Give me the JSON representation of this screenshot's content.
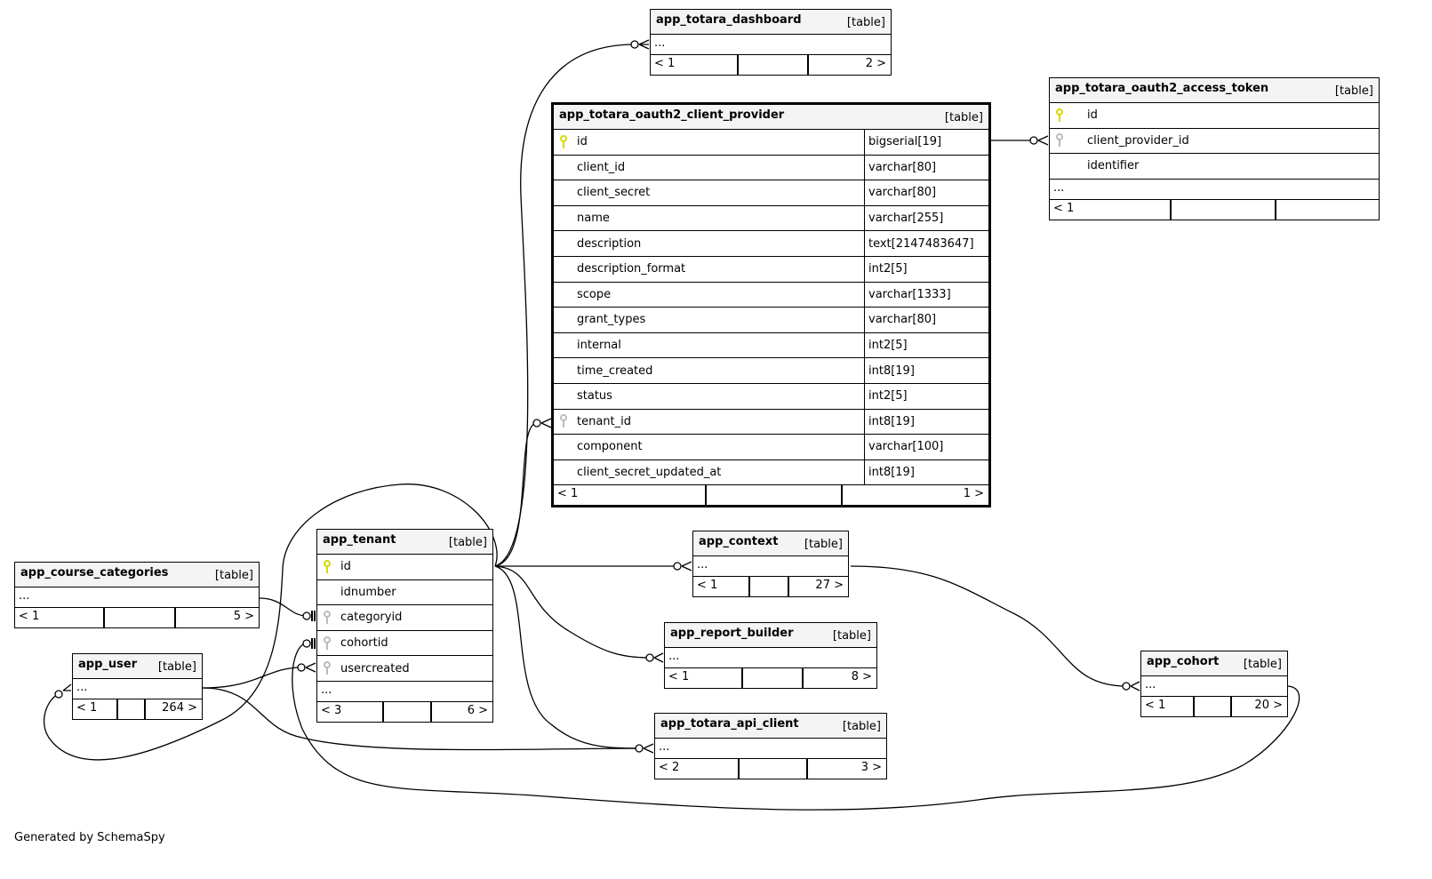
{
  "tables": [
    {
      "name": "app_totara_dashboard",
      "kind": "[table]",
      "ellipsis": "...",
      "columns": [],
      "footer": [
        "< 1",
        "",
        "2 >"
      ]
    },
    {
      "name": "app_totara_oauth2_client_provider",
      "kind": "[table]",
      "focus": true,
      "ellipsis": "",
      "columns": [
        {
          "name": "id",
          "type": "bigserial[19]",
          "key": "primary"
        },
        {
          "name": "client_id",
          "type": "varchar[80]",
          "key": ""
        },
        {
          "name": "client_secret",
          "type": "varchar[80]",
          "key": ""
        },
        {
          "name": "name",
          "type": "varchar[255]",
          "key": ""
        },
        {
          "name": "description",
          "type": "text[2147483647]",
          "key": ""
        },
        {
          "name": "description_format",
          "type": "int2[5]",
          "key": ""
        },
        {
          "name": "scope",
          "type": "varchar[1333]",
          "key": ""
        },
        {
          "name": "grant_types",
          "type": "varchar[80]",
          "key": ""
        },
        {
          "name": "internal",
          "type": "int2[5]",
          "key": ""
        },
        {
          "name": "time_created",
          "type": "int8[19]",
          "key": ""
        },
        {
          "name": "status",
          "type": "int2[5]",
          "key": ""
        },
        {
          "name": "tenant_id",
          "type": "int8[19]",
          "key": "foreign"
        },
        {
          "name": "component",
          "type": "varchar[100]",
          "key": ""
        },
        {
          "name": "client_secret_updated_at",
          "type": "int8[19]",
          "key": ""
        }
      ],
      "footer": [
        "< 1",
        "",
        "1 >"
      ]
    },
    {
      "name": "app_totara_oauth2_access_token",
      "kind": "[table]",
      "ellipsis": "...",
      "columns": [
        {
          "name": "id",
          "key": "primary"
        },
        {
          "name": "client_provider_id",
          "key": "foreign"
        },
        {
          "name": "identifier",
          "key": ""
        }
      ],
      "footer": [
        "< 1",
        "",
        ""
      ]
    },
    {
      "name": "app_tenant",
      "kind": "[table]",
      "ellipsis": "...",
      "columns": [
        {
          "name": "id",
          "key": "primary"
        },
        {
          "name": "idnumber",
          "key": ""
        },
        {
          "name": "categoryid",
          "key": "foreign"
        },
        {
          "name": "cohortid",
          "key": "foreign"
        },
        {
          "name": "usercreated",
          "key": "foreign"
        }
      ],
      "footer": [
        "< 3",
        "",
        "6 >"
      ]
    },
    {
      "name": "app_course_categories",
      "kind": "[table]",
      "ellipsis": "...",
      "columns": [],
      "footer": [
        "< 1",
        "",
        "5 >"
      ]
    },
    {
      "name": "app_user",
      "kind": "[table]",
      "ellipsis": "...",
      "columns": [],
      "footer": [
        "< 1",
        "",
        "264 >"
      ]
    },
    {
      "name": "app_context",
      "kind": "[table]",
      "ellipsis": "...",
      "columns": [],
      "footer": [
        "< 1",
        "",
        "27 >"
      ]
    },
    {
      "name": "app_report_builder",
      "kind": "[table]",
      "ellipsis": "...",
      "columns": [],
      "footer": [
        "< 1",
        "",
        "8 >"
      ]
    },
    {
      "name": "app_totara_api_client",
      "kind": "[table]",
      "ellipsis": "...",
      "columns": [],
      "footer": [
        "< 2",
        "",
        "3 >"
      ]
    },
    {
      "name": "app_cohort",
      "kind": "[table]",
      "ellipsis": "...",
      "columns": [],
      "footer": [
        "< 1",
        "",
        "20 >"
      ]
    }
  ],
  "colors": {
    "primary_key": "#d8d800",
    "foreign_key": "#bbbbbb",
    "header_bg": "#f4f4f4"
  },
  "footer_note": "Generated by SchemaSpy"
}
